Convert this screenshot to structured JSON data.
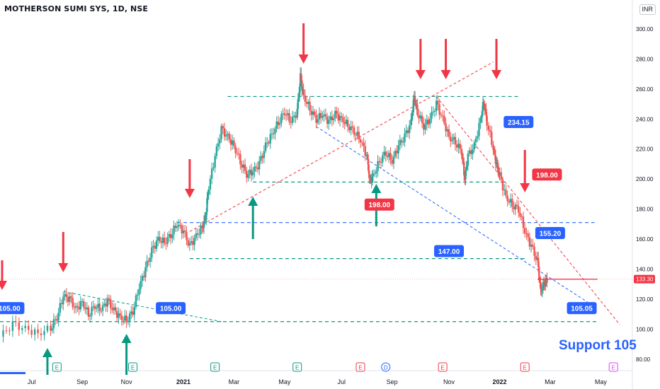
{
  "header": {
    "title": "MOTHERSON SUMI SYS, 1D, NSE",
    "currency": "INR"
  },
  "support_text": "Support 105",
  "last_price": "133.30",
  "colors": {
    "up": "#26a69a",
    "down": "#ef5350",
    "arrow_red": "#f23645",
    "arrow_green": "#089981",
    "blue": "#2962ff"
  },
  "chart_data": {
    "type": "candlestick",
    "ylim": [
      78,
      308
    ],
    "yticks": [
      80,
      100,
      120,
      140,
      160,
      180,
      200,
      220,
      240,
      260,
      280,
      300
    ],
    "ytick_labels": [
      "80.00",
      "100.00",
      "120.00",
      "140.00",
      "160.00",
      "180.00",
      "200.00",
      "220.00",
      "240.00",
      "260.00",
      "280.00",
      "300.00"
    ],
    "xticks": [
      {
        "label": "Jul",
        "t": 0.05,
        "bold": false
      },
      {
        "label": "Sep",
        "t": 0.13,
        "bold": false
      },
      {
        "label": "Nov",
        "t": 0.2,
        "bold": false
      },
      {
        "label": "2021",
        "t": 0.29,
        "bold": true
      },
      {
        "label": "Mar",
        "t": 0.37,
        "bold": false
      },
      {
        "label": "May",
        "t": 0.45,
        "bold": false
      },
      {
        "label": "Jul",
        "t": 0.54,
        "bold": false
      },
      {
        "label": "Sep",
        "t": 0.62,
        "bold": false
      },
      {
        "label": "Nov",
        "t": 0.71,
        "bold": false
      },
      {
        "label": "2022",
        "t": 0.79,
        "bold": true
      },
      {
        "label": "Mar",
        "t": 0.87,
        "bold": false
      },
      {
        "label": "May",
        "t": 0.95,
        "bold": false
      }
    ],
    "price_path": [
      [
        0.0,
        95
      ],
      [
        0.02,
        103
      ],
      [
        0.04,
        100
      ],
      [
        0.06,
        97
      ],
      [
        0.08,
        101
      ],
      [
        0.09,
        108
      ],
      [
        0.1,
        122
      ],
      [
        0.11,
        120
      ],
      [
        0.12,
        113
      ],
      [
        0.13,
        118
      ],
      [
        0.14,
        110
      ],
      [
        0.15,
        116
      ],
      [
        0.16,
        113
      ],
      [
        0.17,
        119
      ],
      [
        0.18,
        112
      ],
      [
        0.19,
        108
      ],
      [
        0.2,
        106
      ],
      [
        0.21,
        112
      ],
      [
        0.22,
        128
      ],
      [
        0.23,
        140
      ],
      [
        0.24,
        152
      ],
      [
        0.25,
        160
      ],
      [
        0.26,
        158
      ],
      [
        0.27,
        163
      ],
      [
        0.28,
        170
      ],
      [
        0.29,
        165
      ],
      [
        0.3,
        155
      ],
      [
        0.31,
        162
      ],
      [
        0.32,
        168
      ],
      [
        0.325,
        175
      ],
      [
        0.33,
        195
      ],
      [
        0.34,
        215
      ],
      [
        0.35,
        233
      ],
      [
        0.36,
        228
      ],
      [
        0.37,
        222
      ],
      [
        0.38,
        212
      ],
      [
        0.39,
        203
      ],
      [
        0.4,
        205
      ],
      [
        0.41,
        210
      ],
      [
        0.42,
        222
      ],
      [
        0.43,
        230
      ],
      [
        0.44,
        238
      ],
      [
        0.45,
        245
      ],
      [
        0.46,
        238
      ],
      [
        0.47,
        245
      ],
      [
        0.475,
        268
      ],
      [
        0.48,
        255
      ],
      [
        0.49,
        247
      ],
      [
        0.5,
        240
      ],
      [
        0.51,
        243
      ],
      [
        0.52,
        238
      ],
      [
        0.53,
        243
      ],
      [
        0.54,
        240
      ],
      [
        0.55,
        236
      ],
      [
        0.56,
        232
      ],
      [
        0.57,
        226
      ],
      [
        0.58,
        215
      ],
      [
        0.585,
        198
      ],
      [
        0.59,
        202
      ],
      [
        0.6,
        212
      ],
      [
        0.61,
        218
      ],
      [
        0.62,
        212
      ],
      [
        0.63,
        222
      ],
      [
        0.64,
        228
      ],
      [
        0.65,
        238
      ],
      [
        0.655,
        255
      ],
      [
        0.66,
        245
      ],
      [
        0.67,
        235
      ],
      [
        0.68,
        240
      ],
      [
        0.69,
        250
      ],
      [
        0.7,
        240
      ],
      [
        0.71,
        228
      ],
      [
        0.72,
        225
      ],
      [
        0.73,
        218
      ],
      [
        0.735,
        200
      ],
      [
        0.74,
        215
      ],
      [
        0.75,
        222
      ],
      [
        0.76,
        240
      ],
      [
        0.765,
        252
      ],
      [
        0.77,
        238
      ],
      [
        0.78,
        220
      ],
      [
        0.785,
        210
      ],
      [
        0.79,
        202
      ],
      [
        0.8,
        188
      ],
      [
        0.81,
        183
      ],
      [
        0.82,
        180
      ],
      [
        0.83,
        165
      ],
      [
        0.84,
        155
      ],
      [
        0.85,
        145
      ],
      [
        0.855,
        125
      ],
      [
        0.86,
        130
      ],
      [
        0.865,
        133.3
      ]
    ],
    "price_labels": [
      {
        "text": "105.00",
        "t": 0.015,
        "y": 114,
        "color": "#2962ff"
      },
      {
        "text": "105.00",
        "t": 0.27,
        "y": 114,
        "color": "#2962ff"
      },
      {
        "text": "147.00",
        "t": 0.71,
        "y": 152,
        "color": "#2962ff"
      },
      {
        "text": "234.15",
        "t": 0.82,
        "y": 238,
        "color": "#2962ff"
      },
      {
        "text": "155.20",
        "t": 0.87,
        "y": 164,
        "color": "#2962ff"
      },
      {
        "text": "105.05",
        "t": 0.92,
        "y": 114,
        "color": "#2962ff"
      },
      {
        "text": "198.00",
        "t": 0.6,
        "y": 183,
        "color": "#f23645"
      },
      {
        "text": "198.00",
        "t": 0.865,
        "y": 203,
        "color": "#f23645"
      }
    ],
    "event_markers": [
      {
        "text": "E",
        "t": 0.09,
        "color": "#089981"
      },
      {
        "text": "E",
        "t": 0.21,
        "color": "#089981"
      },
      {
        "text": "E",
        "t": 0.34,
        "color": "#089981"
      },
      {
        "text": "E",
        "t": 0.47,
        "color": "#089981"
      },
      {
        "text": "E",
        "t": 0.57,
        "color": "#f23645"
      },
      {
        "text": "D",
        "t": 0.61,
        "color": "#2962ff"
      },
      {
        "text": "E",
        "t": 0.7,
        "color": "#f23645"
      },
      {
        "text": "E",
        "t": 0.83,
        "color": "#f23645"
      },
      {
        "text": "E",
        "t": 0.97,
        "color": "#e040fb"
      }
    ],
    "down_arrows": [
      0.0,
      0.1,
      0.3,
      0.48,
      0.665,
      0.705,
      0.785,
      0.83
    ],
    "up_arrows": [
      0.075,
      0.2,
      0.4,
      0.595
    ],
    "horizontal_levels": [
      {
        "y": 255,
        "t0": 0.36,
        "t1": 0.82,
        "color": "#089981"
      },
      {
        "y": 198,
        "t0": 0.4,
        "t1": 0.8,
        "color": "#089981"
      },
      {
        "y": 171,
        "t0": 0.28,
        "t1": 0.94,
        "color": "#2962ff"
      },
      {
        "y": 147,
        "t0": 0.3,
        "t1": 0.83,
        "color": "#089981"
      },
      {
        "y": 105,
        "t0": 0.0,
        "t1": 0.945,
        "color": "#089981"
      }
    ]
  }
}
